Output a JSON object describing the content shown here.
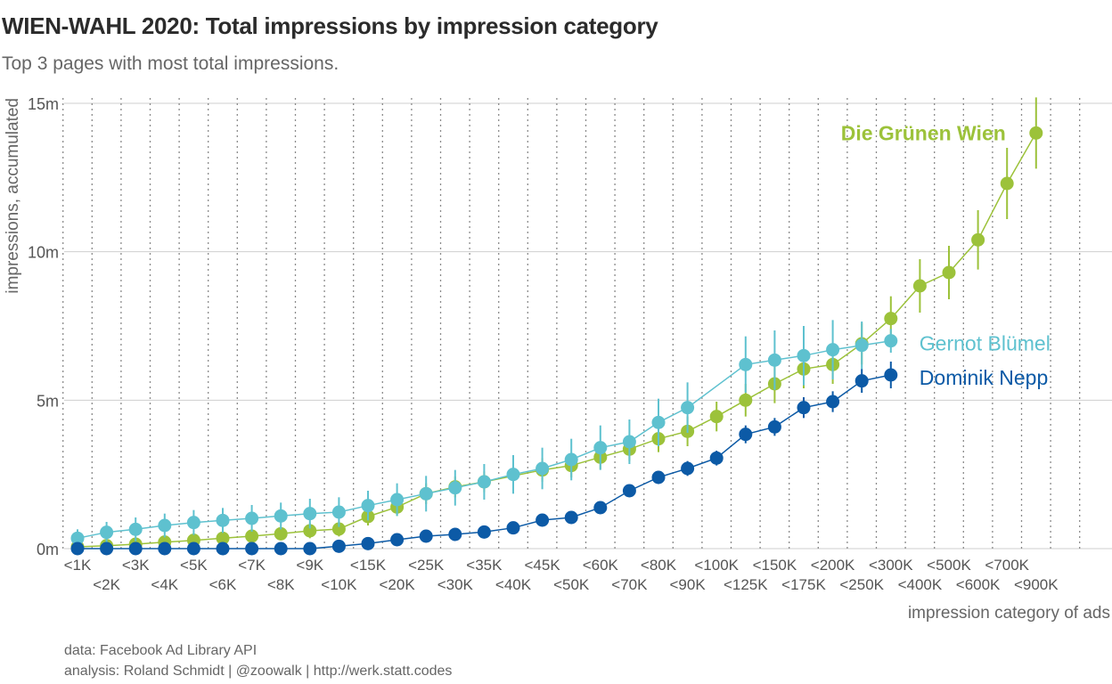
{
  "title": "WIEN-WAHL 2020: Total impressions by impression category",
  "subtitle": "Top 3 pages with most total impressions.",
  "caption": {
    "line1": "data: Facebook Ad Library API",
    "line2": "analysis: Roland Schmidt | @zoowalk | http://werk.statt.codes"
  },
  "chart_data": {
    "type": "line",
    "xlabel": "impression category of ads",
    "ylabel": "impressions, accumulated",
    "ylim": [
      0,
      15000000
    ],
    "y_ticks": [
      {
        "value": 0,
        "label": "0m"
      },
      {
        "value": 5000000,
        "label": "5m"
      },
      {
        "value": 10000000,
        "label": "10m"
      },
      {
        "value": 15000000,
        "label": "15m"
      }
    ],
    "categories": [
      "<1K",
      "<2K",
      "<3K",
      "<4K",
      "<5K",
      "<6K",
      "<7K",
      "<8K",
      "<9K",
      "<10K",
      "<15K",
      "<20K",
      "<25K",
      "<30K",
      "<35K",
      "<40K",
      "<45K",
      "<50K",
      "<60K",
      "<70K",
      "<80K",
      "<90K",
      "<100K",
      "<125K",
      "<150K",
      "<175K",
      "<200K",
      "<250K",
      "<300K",
      "<400K",
      "<500K",
      "<600K",
      "<700K",
      "<900K"
    ],
    "extra_gridlines": 2,
    "grid": true,
    "error_bars": true,
    "series": [
      {
        "name": "Gernot Blümel",
        "color": "#5ec1cf",
        "values": [
          350000,
          550000,
          650000,
          780000,
          880000,
          950000,
          1020000,
          1100000,
          1180000,
          1230000,
          1450000,
          1650000,
          1850000,
          2050000,
          2250000,
          2500000,
          2700000,
          3000000,
          3400000,
          3600000,
          4250000,
          4750000,
          null,
          6200000,
          6350000,
          6500000,
          6700000,
          6850000,
          7000000,
          null,
          null,
          null,
          null,
          null
        ],
        "err": [
          300000,
          350000,
          400000,
          400000,
          420000,
          420000,
          450000,
          450000,
          500000,
          500000,
          500000,
          550000,
          600000,
          600000,
          600000,
          650000,
          700000,
          700000,
          750000,
          750000,
          800000,
          850000,
          0,
          950000,
          1000000,
          1000000,
          1000000,
          800000,
          400000,
          0,
          0,
          0,
          0,
          0
        ]
      },
      {
        "name": "Die Grünen Wien",
        "color": "#9cc23a",
        "values": [
          60000,
          100000,
          150000,
          220000,
          280000,
          350000,
          420000,
          500000,
          600000,
          660000,
          1080000,
          1400000,
          1850000,
          2080000,
          2250000,
          null,
          2650000,
          2800000,
          3080000,
          3350000,
          3700000,
          3950000,
          4450000,
          5000000,
          5550000,
          6050000,
          6200000,
          6900000,
          7750000,
          8850000,
          9300000,
          10400000,
          12300000,
          14000000
        ],
        "err": [
          80000,
          100000,
          120000,
          150000,
          150000,
          180000,
          200000,
          220000,
          250000,
          250000,
          300000,
          300000,
          350000,
          350000,
          350000,
          0,
          400000,
          400000,
          400000,
          400000,
          450000,
          500000,
          500000,
          550000,
          650000,
          650000,
          650000,
          700000,
          750000,
          900000,
          900000,
          1000000,
          1200000,
          1200000
        ]
      },
      {
        "name": "Dominik Nepp",
        "color": "#0c5aa6",
        "values": [
          0,
          0,
          0,
          0,
          0,
          0,
          0,
          0,
          0,
          80000,
          170000,
          300000,
          420000,
          480000,
          560000,
          700000,
          960000,
          1050000,
          1380000,
          1950000,
          2400000,
          2700000,
          3050000,
          3850000,
          4100000,
          4750000,
          4950000,
          5650000,
          5850000,
          null,
          null,
          null,
          null,
          null
        ],
        "err": [
          0,
          0,
          0,
          0,
          0,
          0,
          0,
          0,
          0,
          50000,
          60000,
          80000,
          100000,
          100000,
          120000,
          120000,
          150000,
          150000,
          200000,
          200000,
          220000,
          250000,
          250000,
          300000,
          300000,
          350000,
          350000,
          400000,
          450000,
          0,
          0,
          0,
          0,
          0
        ]
      }
    ],
    "labels": [
      {
        "series": "Die Grünen Wien",
        "text": "Die Grünen Wien",
        "color": "#9cc23a",
        "bold": true
      },
      {
        "series": "Gernot Blümel",
        "text": "Gernot Blümel",
        "color": "#5ec1cf",
        "bold": false
      },
      {
        "series": "Dominik Nepp",
        "text": "Dominik Nepp",
        "color": "#0c5aa6",
        "bold": false
      }
    ]
  }
}
